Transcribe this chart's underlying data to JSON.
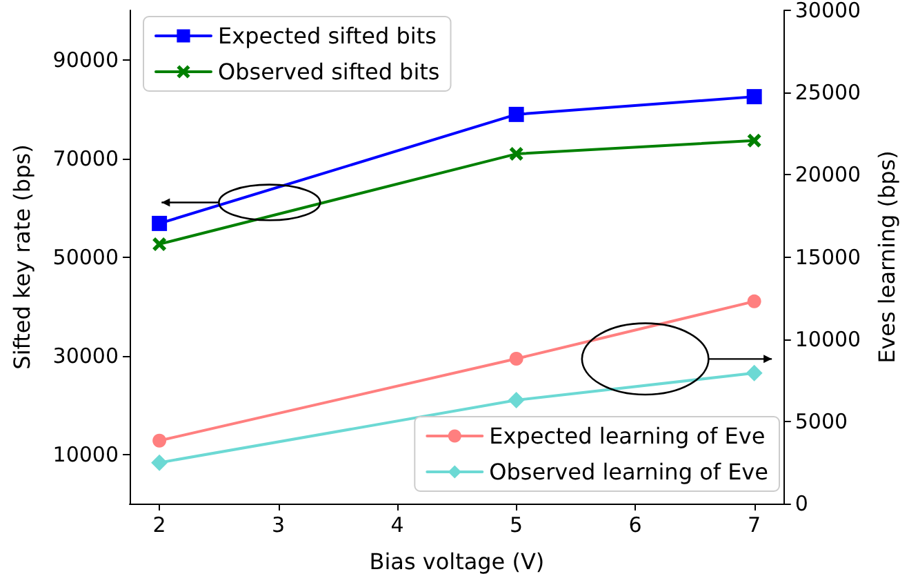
{
  "chart_data": {
    "type": "line",
    "xlabel": "Bias voltage (V)",
    "ylabel": "Sifted key rate (bps)",
    "y2label": "Eves learning (bps)",
    "x": [
      2,
      5,
      7
    ],
    "xlim": [
      1.75,
      7.25
    ],
    "xticks": [
      2,
      3,
      4,
      5,
      6,
      7
    ],
    "ylim": [
      0,
      100000
    ],
    "yticks": [
      10000,
      30000,
      50000,
      70000,
      90000
    ],
    "y2lim": [
      0,
      30000
    ],
    "y2ticks": [
      0,
      5000,
      10000,
      15000,
      20000,
      25000,
      30000
    ],
    "series": [
      {
        "name": "Expected sifted bits",
        "color": "#0000ff",
        "marker": "square",
        "values": [
          56800,
          78900,
          82500
        ]
      },
      {
        "name": "Observed sifted bits",
        "color": "#008000",
        "marker": "cross",
        "values": [
          52600,
          70900,
          73600
        ]
      },
      {
        "name": "Expected learning of Eve",
        "color": "#ff7f7f",
        "marker": "circle",
        "axis": "y2",
        "values": [
          3830,
          8810,
          12300
        ]
      },
      {
        "name": "Observed learning of Eve",
        "color": "#6cd9d4",
        "marker": "diamond",
        "axis": "y2",
        "values": [
          2490,
          6290,
          7940
        ]
      }
    ],
    "legend": [
      "top left",
      "bottom right"
    ],
    "grid": false,
    "line_style": "solid"
  }
}
